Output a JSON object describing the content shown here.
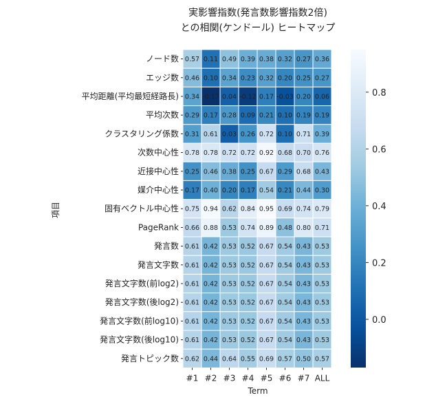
{
  "chart_data": {
    "type": "heatmap",
    "title": "実影響指数(発言数影響指数2倍)",
    "subtitle": "との相関(ケンドール) ヒートマップ",
    "xlabel": "Term",
    "ylabel": "項目",
    "x_categories": [
      "#1",
      "#2",
      "#3",
      "#4",
      "#5",
      "#6",
      "#7",
      "ALL"
    ],
    "y_categories": [
      "ノード数",
      "エッジ数",
      "平均距離(平均最短経路長)",
      "平均次数",
      "クラスタリング係数",
      "次数中心性",
      "近接中心性",
      "媒介中心性",
      "固有ベクトル中心性",
      "PageRank",
      "発言数",
      "発言文字数",
      "発言文字数(前log2)",
      "発言文字数(後log2)",
      "発言文字数(前log10)",
      "発言文字数(後log10)",
      "発言トピック数"
    ],
    "values": [
      [
        0.57,
        0.11,
        0.49,
        0.39,
        0.38,
        0.32,
        0.27,
        0.36
      ],
      [
        0.46,
        0.1,
        0.34,
        0.23,
        0.32,
        0.2,
        0.25,
        0.27
      ],
      [
        0.34,
        -0.17,
        0.04,
        -0.12,
        0.17,
        -0.03,
        0.2,
        0.06
      ],
      [
        0.29,
        0.17,
        0.28,
        0.09,
        0.21,
        0.1,
        0.19,
        0.19
      ],
      [
        0.31,
        0.61,
        0.03,
        0.26,
        0.72,
        0.1,
        0.71,
        0.39
      ],
      [
        0.78,
        0.78,
        0.72,
        0.72,
        0.92,
        0.68,
        0.7,
        0.76
      ],
      [
        0.25,
        0.46,
        0.38,
        0.25,
        0.67,
        0.29,
        0.68,
        0.43
      ],
      [
        0.17,
        0.4,
        0.2,
        0.17,
        0.54,
        0.21,
        0.44,
        0.3
      ],
      [
        0.75,
        0.94,
        0.62,
        0.84,
        0.95,
        0.69,
        0.74,
        0.79
      ],
      [
        0.66,
        0.88,
        0.53,
        0.74,
        0.89,
        0.48,
        0.8,
        0.71
      ],
      [
        0.61,
        0.42,
        0.53,
        0.52,
        0.67,
        0.54,
        0.43,
        0.53
      ],
      [
        0.61,
        0.42,
        0.53,
        0.52,
        0.67,
        0.54,
        0.43,
        0.53
      ],
      [
        0.61,
        0.42,
        0.53,
        0.52,
        0.67,
        0.54,
        0.43,
        0.53
      ],
      [
        0.61,
        0.42,
        0.53,
        0.52,
        0.67,
        0.54,
        0.43,
        0.53
      ],
      [
        0.61,
        0.42,
        0.53,
        0.52,
        0.67,
        0.54,
        0.43,
        0.53
      ],
      [
        0.61,
        0.42,
        0.53,
        0.52,
        0.67,
        0.54,
        0.43,
        0.53
      ],
      [
        0.62,
        0.44,
        0.64,
        0.55,
        0.69,
        0.57,
        0.5,
        0.57
      ]
    ],
    "colormap": "Blues_r",
    "colorbar": {
      "min": -0.17,
      "max": 0.95,
      "ticks": [
        0.0,
        0.2,
        0.4,
        0.6,
        0.8
      ],
      "tick_labels": [
        "0.0",
        "0.2",
        "0.4",
        "0.6",
        "0.8"
      ]
    },
    "annotations": true,
    "grid": false
  }
}
